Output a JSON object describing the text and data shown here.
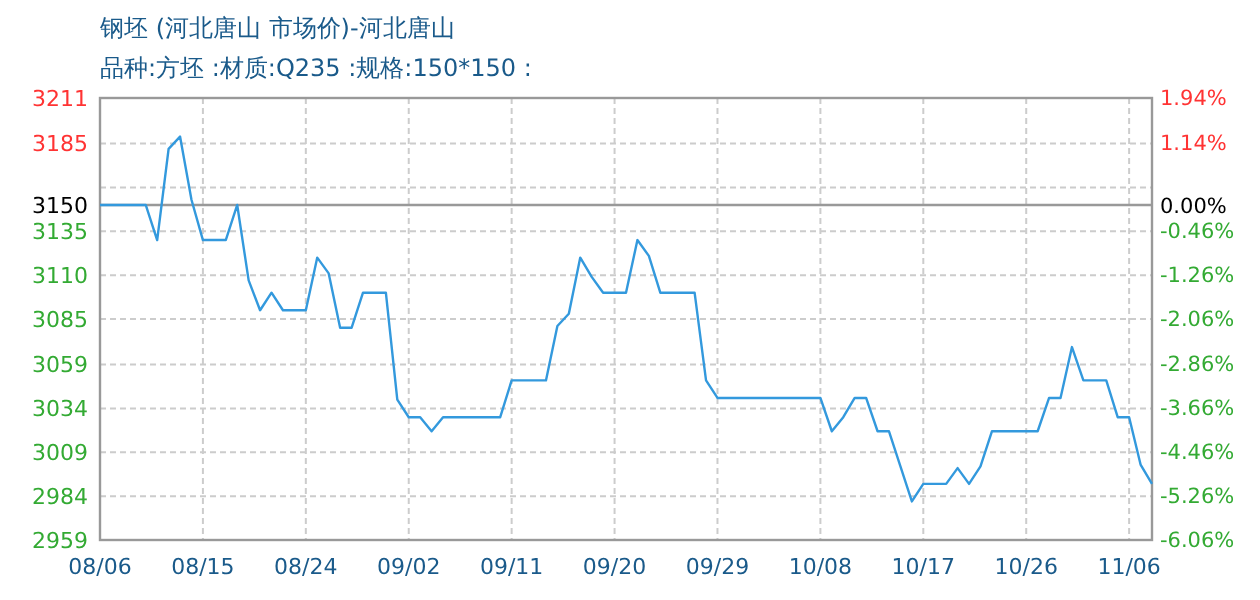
{
  "chart_data": {
    "type": "line",
    "title": "钢坯 (河北唐山 市场价)-河北唐山",
    "subtitle": "品种:方坯 :材质:Q235 :规格:150*150 :",
    "categories": [
      "08/06",
      null,
      null,
      null,
      null,
      null,
      null,
      null,
      null,
      "08/15",
      null,
      null,
      null,
      null,
      null,
      null,
      null,
      null,
      "08/24",
      null,
      null,
      null,
      null,
      null,
      null,
      null,
      null,
      "09/02",
      null,
      null,
      null,
      null,
      null,
      null,
      null,
      null,
      "09/11",
      null,
      null,
      null,
      null,
      null,
      null,
      null,
      null,
      "09/20",
      null,
      null,
      null,
      null,
      null,
      null,
      null,
      null,
      "09/29",
      null,
      null,
      null,
      null,
      null,
      null,
      null,
      null,
      "10/08",
      null,
      null,
      null,
      null,
      null,
      null,
      null,
      null,
      "10/17",
      null,
      null,
      null,
      null,
      null,
      null,
      null,
      null,
      "10/26",
      null,
      null,
      null,
      null,
      null,
      null,
      null,
      null,
      "11/06",
      null,
      null
    ],
    "series": [
      {
        "color": "#3399dd",
        "values": [
          3150,
          3150,
          3150,
          3150,
          3150,
          3130,
          3182,
          3189,
          3153,
          3130,
          3130,
          3130,
          3150,
          3107,
          3090,
          3100,
          3090,
          3090,
          3090,
          3120,
          3111,
          3080,
          3080,
          3100,
          3100,
          3100,
          3039,
          3029,
          3029,
          3021,
          3029,
          3029,
          3029,
          3029,
          3029,
          3029,
          3050,
          3050,
          3050,
          3050,
          3081,
          3088,
          3120,
          3109,
          3100,
          3100,
          3100,
          3130,
          3121,
          3100,
          3100,
          3100,
          3100,
          3050,
          3040,
          3040,
          3040,
          3040,
          3040,
          3040,
          3040,
          3040,
          3040,
          3040,
          3021,
          3029,
          3040,
          3040,
          3021,
          3021,
          3001,
          2981,
          2991,
          2991,
          2991,
          3000,
          2991,
          3001,
          3021,
          3021,
          3021,
          3021,
          3021,
          3040,
          3040,
          3069,
          3050,
          3050,
          3050,
          3029,
          3029,
          3002,
          2991
        ]
      }
    ],
    "ylim": [
      2959,
      3211
    ],
    "yticks": [
      3211,
      3185,
      {
        "value": 3160,
        "label": null
      },
      3150,
      3135,
      3110,
      3085,
      3059,
      3034,
      3009,
      2984,
      2959
    ],
    "y2lim": [
      -6.06,
      1.94
    ],
    "y2ticks": [
      {
        "value": 1.94,
        "label": "1.94%"
      },
      {
        "value": 1.14,
        "label": "1.14%"
      },
      {
        "value": 0,
        "label": "0.00%"
      },
      {
        "value": -0.46,
        "label": "-0.46%"
      },
      {
        "value": -1.26,
        "label": "-1.26%"
      },
      {
        "value": -2.06,
        "label": "-2.06%"
      },
      {
        "value": -2.86,
        "label": "-2.86%"
      },
      {
        "value": -3.66,
        "label": "-3.66%"
      },
      {
        "value": -4.46,
        "label": "-4.46%"
      },
      {
        "value": -5.26,
        "label": "-5.26%"
      },
      {
        "value": -6.06,
        "label": "-6.06%"
      }
    ],
    "ref_lines": [
      {
        "axis": "y",
        "value": 3150,
        "color": "#999999"
      }
    ],
    "grid": true,
    "marker": "none",
    "line_style": "solid"
  }
}
